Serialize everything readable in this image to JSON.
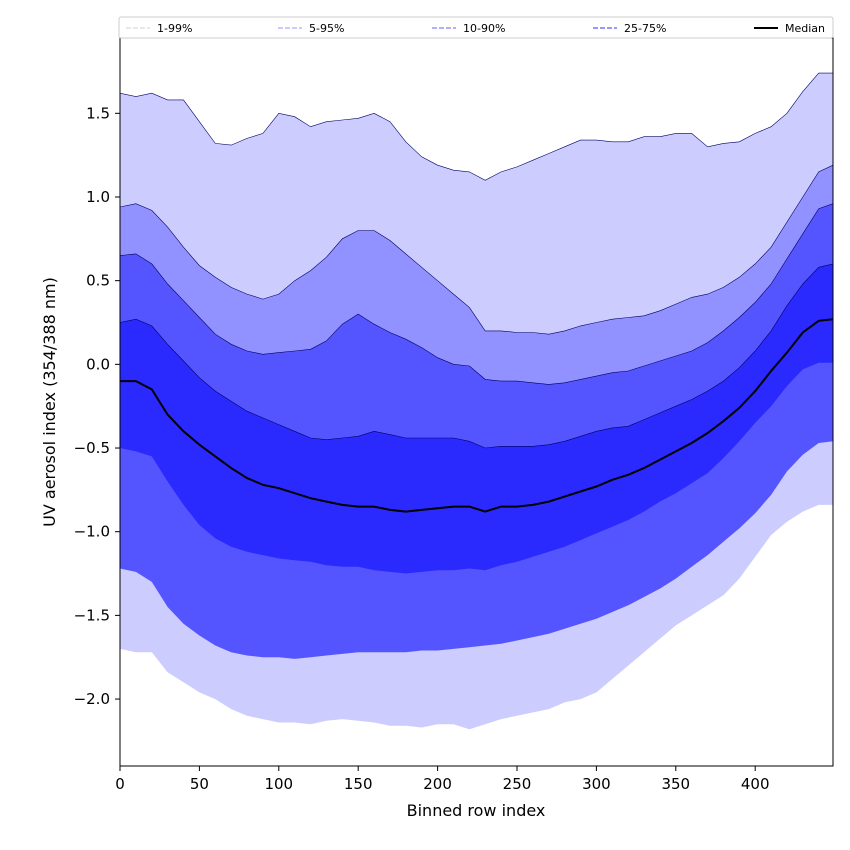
{
  "chart_data": {
    "type": "area",
    "xlabel": "Binned row index",
    "ylabel": "UV aerosol index (354/388 nm)",
    "xlim": [
      0,
      449
    ],
    "ylim": [
      -2.4,
      1.95
    ],
    "xticks": [
      0,
      50,
      100,
      150,
      200,
      250,
      300,
      350,
      400
    ],
    "yticks": [
      -2.0,
      -1.5,
      -1.0,
      -0.5,
      0.0,
      0.5,
      1.0,
      1.5
    ],
    "xtick_labels": [
      "0",
      "50",
      "100",
      "150",
      "200",
      "250",
      "300",
      "350",
      "400"
    ],
    "ytick_labels": [
      "−2.0",
      "−1.5",
      "−1.0",
      "−0.5",
      "0.0",
      "0.5",
      "1.0",
      "1.5"
    ],
    "grid": false,
    "legend_position": "top (above plot, single row)",
    "x": [
      0,
      10,
      20,
      30,
      40,
      50,
      60,
      70,
      80,
      90,
      100,
      110,
      120,
      130,
      140,
      150,
      160,
      170,
      180,
      190,
      200,
      210,
      220,
      230,
      240,
      250,
      260,
      270,
      280,
      290,
      300,
      310,
      320,
      330,
      340,
      350,
      360,
      370,
      380,
      390,
      400,
      410,
      420,
      430,
      440,
      449
    ],
    "bands": [
      {
        "name": "1-99%",
        "color": "#ccccff",
        "line_color": "#d9d9d9",
        "upper": [
          1.62,
          1.6,
          1.62,
          1.58,
          1.58,
          1.45,
          1.32,
          1.31,
          1.35,
          1.38,
          1.5,
          1.48,
          1.42,
          1.45,
          1.46,
          1.47,
          1.5,
          1.45,
          1.33,
          1.24,
          1.19,
          1.16,
          1.15,
          1.1,
          1.15,
          1.18,
          1.22,
          1.26,
          1.3,
          1.34,
          1.34,
          1.33,
          1.33,
          1.36,
          1.36,
          1.38,
          1.38,
          1.3,
          1.32,
          1.33,
          1.38,
          1.42,
          1.5,
          1.63,
          1.74,
          1.74
        ],
        "lower": [
          -1.7,
          -1.72,
          -1.72,
          -1.84,
          -1.9,
          -1.96,
          -2.0,
          -2.06,
          -2.1,
          -2.12,
          -2.14,
          -2.14,
          -2.15,
          -2.13,
          -2.12,
          -2.13,
          -2.14,
          -2.16,
          -2.16,
          -2.17,
          -2.15,
          -2.15,
          -2.18,
          -2.15,
          -2.12,
          -2.1,
          -2.08,
          -2.06,
          -2.02,
          -2.0,
          -1.96,
          -1.88,
          -1.8,
          -1.72,
          -1.64,
          -1.56,
          -1.5,
          -1.44,
          -1.38,
          -1.28,
          -1.15,
          -1.02,
          -0.94,
          -0.88,
          -0.84,
          -0.84
        ]
      },
      {
        "name": "5-95%",
        "color": "#9191ff",
        "line_color": "#ababff",
        "upper": [
          0.94,
          0.96,
          0.92,
          0.82,
          0.7,
          0.59,
          0.52,
          0.46,
          0.42,
          0.39,
          0.42,
          0.5,
          0.56,
          0.64,
          0.75,
          0.8,
          0.8,
          0.74,
          0.66,
          0.58,
          0.5,
          0.42,
          0.34,
          0.2,
          0.2,
          0.19,
          0.19,
          0.18,
          0.2,
          0.23,
          0.25,
          0.27,
          0.28,
          0.29,
          0.32,
          0.36,
          0.4,
          0.42,
          0.46,
          0.52,
          0.6,
          0.7,
          0.85,
          1.0,
          1.15,
          1.19
        ],
        "lower": [
          -0.96,
          -0.99,
          -1.05,
          -1.2,
          -1.3,
          -1.36,
          -1.44,
          -1.51,
          -1.54,
          -1.55,
          -1.55,
          -1.56,
          -1.56,
          -1.55,
          -1.55,
          -1.55,
          -1.53,
          -1.53,
          -1.54,
          -1.54,
          -1.52,
          -1.51,
          -1.5,
          -1.5,
          -1.5,
          -1.47,
          -1.45,
          -1.42,
          -1.39,
          -1.36,
          -1.32,
          -1.27,
          -1.22,
          -1.16,
          -1.1,
          -1.03,
          -0.95,
          -0.88,
          -0.78,
          -0.7,
          -0.61,
          -0.51,
          -0.4,
          -0.32,
          -0.27,
          -0.26
        ]
      },
      {
        "name": "10-90%",
        "color": "#5555ff",
        "line_color": "#8080ff",
        "upper": [
          0.65,
          0.66,
          0.6,
          0.48,
          0.38,
          0.28,
          0.18,
          0.12,
          0.08,
          0.06,
          0.07,
          0.08,
          0.09,
          0.14,
          0.24,
          0.3,
          0.24,
          0.19,
          0.15,
          0.1,
          0.04,
          0.0,
          -0.01,
          -0.09,
          -0.1,
          -0.1,
          -0.11,
          -0.12,
          -0.11,
          -0.09,
          -0.07,
          -0.05,
          -0.04,
          -0.01,
          0.02,
          0.05,
          0.08,
          0.13,
          0.2,
          0.28,
          0.37,
          0.48,
          0.63,
          0.78,
          0.93,
          0.96
        ],
        "lower": [
          -1.22,
          -1.24,
          -1.3,
          -1.45,
          -1.55,
          -1.62,
          -1.68,
          -1.72,
          -1.74,
          -1.75,
          -1.75,
          -1.76,
          -1.75,
          -1.74,
          -1.73,
          -1.72,
          -1.72,
          -1.72,
          -1.72,
          -1.71,
          -1.71,
          -1.7,
          -1.69,
          -1.68,
          -1.67,
          -1.65,
          -1.63,
          -1.61,
          -1.58,
          -1.55,
          -1.52,
          -1.48,
          -1.44,
          -1.39,
          -1.34,
          -1.28,
          -1.21,
          -1.14,
          -1.06,
          -0.98,
          -0.89,
          -0.78,
          -0.64,
          -0.54,
          -0.47,
          -0.46
        ]
      },
      {
        "name": "25-75%",
        "color": "#2a2aff",
        "line_color": "#5a5aff",
        "upper": [
          0.25,
          0.27,
          0.23,
          0.12,
          0.02,
          -0.08,
          -0.16,
          -0.22,
          -0.28,
          -0.32,
          -0.36,
          -0.4,
          -0.44,
          -0.45,
          -0.44,
          -0.43,
          -0.4,
          -0.42,
          -0.44,
          -0.44,
          -0.44,
          -0.44,
          -0.46,
          -0.5,
          -0.49,
          -0.49,
          -0.49,
          -0.48,
          -0.46,
          -0.43,
          -0.4,
          -0.38,
          -0.37,
          -0.33,
          -0.29,
          -0.25,
          -0.21,
          -0.16,
          -0.1,
          -0.02,
          0.08,
          0.2,
          0.35,
          0.48,
          0.58,
          0.6
        ],
        "lower": [
          -0.5,
          -0.52,
          -0.55,
          -0.7,
          -0.84,
          -0.96,
          -1.04,
          -1.09,
          -1.12,
          -1.14,
          -1.16,
          -1.17,
          -1.18,
          -1.2,
          -1.21,
          -1.21,
          -1.23,
          -1.24,
          -1.25,
          -1.24,
          -1.23,
          -1.23,
          -1.22,
          -1.23,
          -1.2,
          -1.18,
          -1.15,
          -1.12,
          -1.09,
          -1.05,
          -1.01,
          -0.97,
          -0.93,
          -0.88,
          -0.82,
          -0.77,
          -0.71,
          -0.65,
          -0.56,
          -0.46,
          -0.35,
          -0.25,
          -0.13,
          -0.03,
          0.01,
          0.01
        ]
      }
    ],
    "series": [
      {
        "name": "Median",
        "color": "#000000",
        "values": [
          -0.1,
          -0.1,
          -0.15,
          -0.3,
          -0.4,
          -0.48,
          -0.55,
          -0.62,
          -0.68,
          -0.72,
          -0.74,
          -0.77,
          -0.8,
          -0.82,
          -0.84,
          -0.85,
          -0.85,
          -0.87,
          -0.88,
          -0.87,
          -0.86,
          -0.85,
          -0.85,
          -0.88,
          -0.85,
          -0.85,
          -0.84,
          -0.82,
          -0.79,
          -0.76,
          -0.73,
          -0.69,
          -0.66,
          -0.62,
          -0.57,
          -0.52,
          -0.47,
          -0.41,
          -0.34,
          -0.26,
          -0.16,
          -0.04,
          0.07,
          0.19,
          0.26,
          0.27
        ]
      }
    ]
  }
}
